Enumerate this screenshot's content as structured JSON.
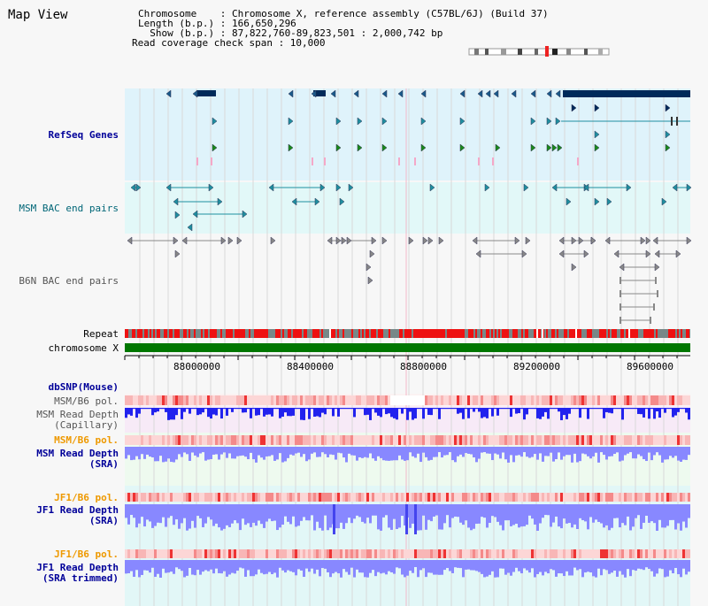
{
  "header": {
    "title": "Map View",
    "info_lines": [
      "Chromosome    : Chromosome X, reference assembly (C57BL/6J) (Build 37)",
      "Length (b.p.) : 166,650,296",
      "  Show (b.p.) : 87,822,760-89,823,501 : 2,000,742 bp",
      "Read coverage check span : 10,000"
    ]
  },
  "tracks": {
    "refseq": "RefSeq Genes",
    "msm_bac": "MSM BAC end pairs",
    "b6n_bac": "B6N BAC end pairs",
    "repeat": "Repeat",
    "chromosome": "chromosome X",
    "dbsnp": "dbSNP(Mouse)",
    "msm_b6_pol_1": "MSM/B6 pol.",
    "msm_depth_cap_1": "MSM Read Depth",
    "msm_depth_cap_2": "(Capillary)",
    "msm_b6_pol_2": "MSM/B6 pol.",
    "msm_depth_sra_1": "MSM Read Depth",
    "msm_depth_sra_2": "(SRA)",
    "jf1_b6_pol_1": "JF1/B6 pol.",
    "jf1_depth_sra_1": "JF1 Read Depth",
    "jf1_depth_sra_2": "(SRA)",
    "jf1_b6_pol_2": "JF1/B6 pol.",
    "jf1_depth_trim_1": "JF1 Read Depth",
    "jf1_depth_trim_2": "(SRA trimmed)"
  },
  "axis": {
    "ticks": [
      "88000000",
      "88400000",
      "88800000",
      "89200000",
      "89600000"
    ]
  },
  "colors": {
    "refseq_bg": "#dff3fb",
    "msm_bg": "#e2f8f8",
    "gene_dark": "#002a5a",
    "gene_teal": "#1f8fa0",
    "gene_green": "#1a8a1a",
    "repeat_red": "#ee1111",
    "repeat_gray": "#778888",
    "chrom_green": "#007700",
    "label_blue": "#000099",
    "label_teal": "#006677",
    "label_orange": "#ee9900",
    "label_gray": "#555555",
    "depth_blue": "#2222ee",
    "depth_light": "#8888ff"
  }
}
